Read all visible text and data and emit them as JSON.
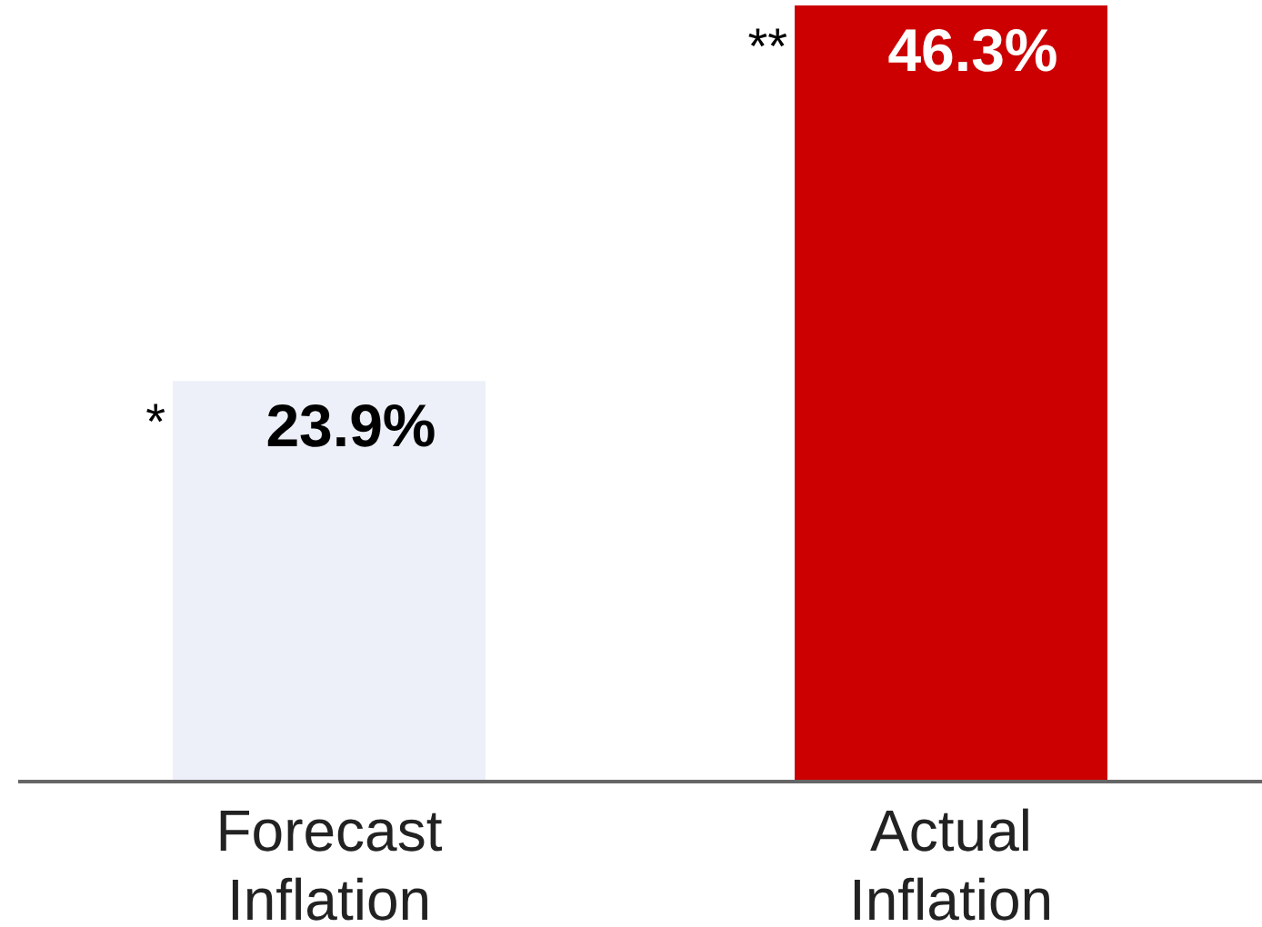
{
  "chart_data": {
    "type": "bar",
    "categories": [
      "Forecast Inflation",
      "Actual Inflation"
    ],
    "values": [
      23.9,
      46.3
    ],
    "colors": [
      "#edf0f8",
      "#cc0000"
    ],
    "value_labels": [
      "23.9%",
      "46.3%"
    ],
    "annotations": [
      "*",
      "**"
    ]
  }
}
